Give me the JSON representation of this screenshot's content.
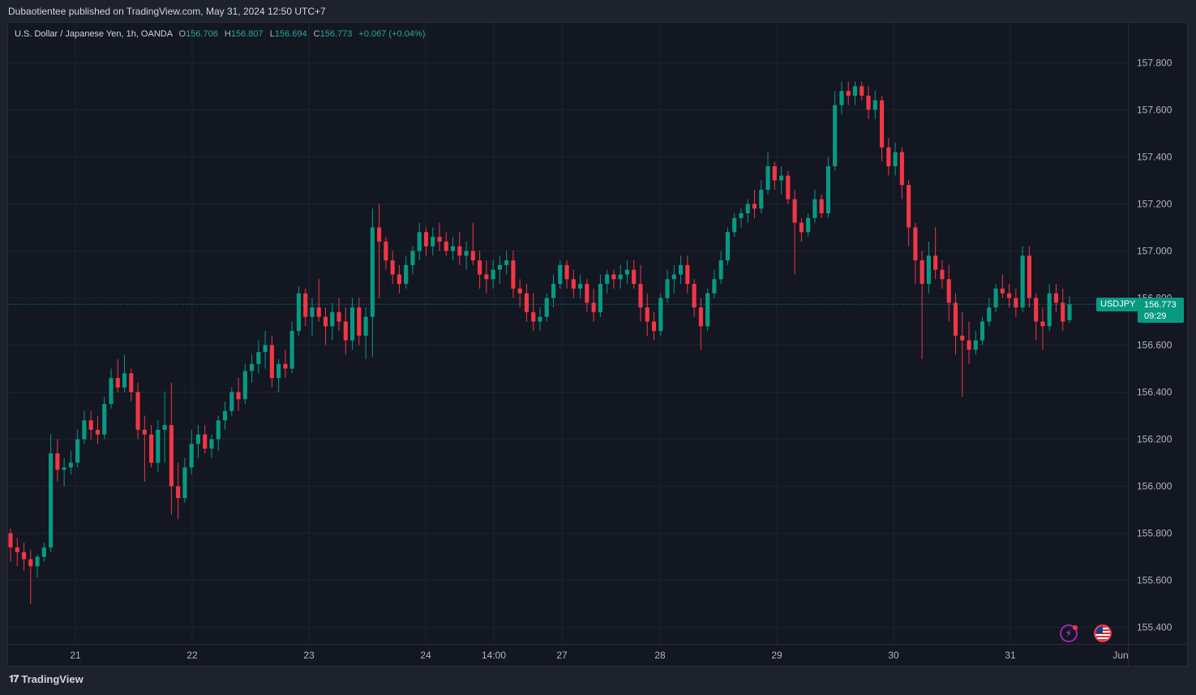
{
  "header": {
    "publisher": "Dubaotientee",
    "publish_line": "Dubaotientee published on TradingView.com, May 31, 2024 12:50 UTC+7"
  },
  "legend": {
    "symbol_description": "U.S. Dollar / Japanese Yen, 1h, OANDA",
    "open_label": "O",
    "open": "156.706",
    "high_label": "H",
    "high": "156.807",
    "low_label": "L",
    "low": "156.694",
    "close_label": "C",
    "close": "156.773",
    "change": "+0.067 (+0.04%)"
  },
  "price_tag": {
    "symbol": "USDJPY",
    "price": "156.773",
    "countdown": "09:29"
  },
  "footer": {
    "brand": "TradingView",
    "logo_icon": "tradingview-logo-icon"
  },
  "icons": {
    "flash": "flash-icon",
    "flag": "us-flag-icon"
  },
  "colors": {
    "up": "#089981",
    "down": "#f23645",
    "background": "#131722",
    "grid": "#1f2330",
    "axis_text": "#b2b5be",
    "last_price_line": "#089981"
  },
  "chart_data": {
    "type": "candlestick",
    "symbol": "USDJPY",
    "interval": "1h",
    "ylim": [
      155.33,
      157.97
    ],
    "y_ticks": [
      "155.400",
      "155.600",
      "155.800",
      "156.000",
      "156.200",
      "156.400",
      "156.600",
      "156.800",
      "157.000",
      "157.200",
      "157.400",
      "157.600",
      "157.800"
    ],
    "x_labels": [
      "21",
      "22",
      "23",
      "24",
      "14:00",
      "27",
      "28",
      "29",
      "30",
      "31",
      "Jun"
    ],
    "last_price": 156.773,
    "grid": true,
    "ohlc": [
      [
        155.8,
        155.82,
        155.68,
        155.74
      ],
      [
        155.74,
        155.78,
        155.66,
        155.72
      ],
      [
        155.72,
        155.76,
        155.64,
        155.69
      ],
      [
        155.69,
        155.73,
        155.5,
        155.66
      ],
      [
        155.66,
        155.71,
        155.61,
        155.7
      ],
      [
        155.7,
        155.76,
        155.68,
        155.74
      ],
      [
        155.74,
        156.22,
        155.72,
        156.14
      ],
      [
        156.14,
        156.2,
        156.02,
        156.07
      ],
      [
        156.07,
        156.12,
        156.0,
        156.08
      ],
      [
        156.08,
        156.15,
        156.05,
        156.1
      ],
      [
        156.1,
        156.24,
        156.08,
        156.2
      ],
      [
        156.2,
        156.32,
        156.18,
        156.28
      ],
      [
        156.28,
        156.32,
        156.2,
        156.24
      ],
      [
        156.24,
        156.3,
        156.18,
        156.22
      ],
      [
        156.22,
        156.38,
        156.2,
        156.35
      ],
      [
        156.35,
        156.5,
        156.33,
        156.46
      ],
      [
        156.46,
        156.54,
        156.4,
        156.42
      ],
      [
        156.42,
        156.56,
        156.4,
        156.48
      ],
      [
        156.48,
        156.5,
        156.36,
        156.4
      ],
      [
        156.4,
        156.44,
        156.2,
        156.24
      ],
      [
        156.24,
        156.3,
        156.02,
        156.22
      ],
      [
        156.22,
        156.26,
        156.08,
        156.1
      ],
      [
        156.1,
        156.28,
        156.06,
        156.24
      ],
      [
        156.24,
        156.4,
        156.1,
        156.26
      ],
      [
        156.26,
        156.44,
        155.88,
        156.0
      ],
      [
        156.0,
        156.1,
        155.86,
        155.95
      ],
      [
        155.95,
        156.12,
        155.93,
        156.08
      ],
      [
        156.08,
        156.24,
        156.05,
        156.18
      ],
      [
        156.18,
        156.26,
        156.12,
        156.22
      ],
      [
        156.22,
        156.26,
        156.14,
        156.16
      ],
      [
        156.16,
        156.22,
        156.12,
        156.2
      ],
      [
        156.2,
        156.3,
        156.15,
        156.28
      ],
      [
        156.28,
        156.36,
        156.24,
        156.32
      ],
      [
        156.32,
        156.42,
        156.3,
        156.4
      ],
      [
        156.4,
        156.46,
        156.32,
        156.37
      ],
      [
        156.37,
        156.52,
        156.35,
        156.49
      ],
      [
        156.49,
        156.56,
        156.44,
        156.52
      ],
      [
        156.52,
        156.62,
        156.48,
        156.57
      ],
      [
        156.57,
        156.66,
        156.5,
        156.6
      ],
      [
        156.6,
        156.64,
        156.42,
        156.46
      ],
      [
        156.46,
        156.54,
        156.4,
        156.52
      ],
      [
        156.52,
        156.58,
        156.46,
        156.5
      ],
      [
        156.5,
        156.7,
        156.48,
        156.66
      ],
      [
        156.66,
        156.85,
        156.64,
        156.82
      ],
      [
        156.82,
        156.84,
        156.68,
        156.72
      ],
      [
        156.72,
        156.8,
        156.64,
        156.76
      ],
      [
        156.76,
        156.88,
        156.7,
        156.72
      ],
      [
        156.72,
        156.76,
        156.6,
        156.68
      ],
      [
        156.68,
        156.78,
        156.62,
        156.74
      ],
      [
        156.74,
        156.8,
        156.66,
        156.7
      ],
      [
        156.7,
        156.76,
        156.56,
        156.62
      ],
      [
        156.62,
        156.8,
        156.58,
        156.76
      ],
      [
        156.76,
        156.8,
        156.6,
        156.64
      ],
      [
        156.64,
        156.76,
        156.54,
        156.72
      ],
      [
        156.72,
        157.18,
        156.55,
        157.1
      ],
      [
        157.1,
        157.2,
        156.8,
        157.04
      ],
      [
        157.04,
        157.06,
        156.92,
        156.96
      ],
      [
        156.96,
        157.0,
        156.86,
        156.9
      ],
      [
        156.9,
        156.94,
        156.82,
        156.86
      ],
      [
        156.86,
        156.98,
        156.84,
        156.94
      ],
      [
        156.94,
        157.02,
        156.9,
        157.0
      ],
      [
        157.0,
        157.12,
        156.96,
        157.08
      ],
      [
        157.08,
        157.1,
        156.98,
        157.02
      ],
      [
        157.02,
        157.1,
        156.98,
        157.06
      ],
      [
        157.06,
        157.12,
        157.0,
        157.04
      ],
      [
        157.04,
        157.08,
        156.98,
        157.0
      ],
      [
        157.0,
        157.06,
        156.96,
        157.02
      ],
      [
        157.02,
        157.08,
        156.94,
        156.98
      ],
      [
        156.98,
        157.04,
        156.92,
        157.0
      ],
      [
        157.0,
        157.12,
        156.94,
        156.96
      ],
      [
        156.96,
        157.0,
        156.84,
        156.9
      ],
      [
        156.9,
        156.96,
        156.82,
        156.88
      ],
      [
        156.88,
        156.96,
        156.84,
        156.92
      ],
      [
        156.92,
        156.98,
        156.86,
        156.94
      ],
      [
        156.94,
        157.0,
        156.9,
        156.96
      ],
      [
        156.96,
        157.0,
        156.8,
        156.84
      ],
      [
        156.84,
        156.88,
        156.76,
        156.82
      ],
      [
        156.82,
        156.86,
        156.7,
        156.74
      ],
      [
        156.74,
        156.82,
        156.66,
        156.7
      ],
      [
        156.7,
        156.76,
        156.66,
        156.72
      ],
      [
        156.72,
        156.82,
        156.7,
        156.8
      ],
      [
        156.8,
        156.9,
        156.76,
        156.86
      ],
      [
        156.86,
        156.96,
        156.84,
        156.94
      ],
      [
        156.94,
        156.96,
        156.84,
        156.88
      ],
      [
        156.88,
        156.92,
        156.8,
        156.84
      ],
      [
        156.84,
        156.9,
        156.8,
        156.86
      ],
      [
        156.86,
        156.88,
        156.74,
        156.78
      ],
      [
        156.78,
        156.84,
        156.7,
        156.74
      ],
      [
        156.74,
        156.9,
        156.72,
        156.86
      ],
      [
        156.86,
        156.92,
        156.82,
        156.9
      ],
      [
        156.9,
        156.92,
        156.84,
        156.88
      ],
      [
        156.88,
        156.94,
        156.84,
        156.9
      ],
      [
        156.9,
        156.96,
        156.86,
        156.92
      ],
      [
        156.92,
        156.96,
        156.84,
        156.86
      ],
      [
        156.86,
        156.94,
        156.7,
        156.76
      ],
      [
        156.76,
        156.82,
        156.64,
        156.7
      ],
      [
        156.7,
        156.74,
        156.62,
        156.66
      ],
      [
        156.66,
        156.82,
        156.64,
        156.8
      ],
      [
        156.8,
        156.92,
        156.78,
        156.88
      ],
      [
        156.88,
        156.94,
        156.82,
        156.9
      ],
      [
        156.9,
        156.98,
        156.86,
        156.94
      ],
      [
        156.94,
        156.98,
        156.82,
        156.86
      ],
      [
        156.86,
        156.88,
        156.72,
        156.76
      ],
      [
        156.76,
        156.8,
        156.58,
        156.68
      ],
      [
        156.68,
        156.84,
        156.66,
        156.82
      ],
      [
        156.82,
        156.92,
        156.8,
        156.88
      ],
      [
        156.88,
        157.0,
        156.86,
        156.96
      ],
      [
        156.96,
        157.1,
        156.94,
        157.08
      ],
      [
        157.08,
        157.16,
        157.06,
        157.14
      ],
      [
        157.14,
        157.18,
        157.1,
        157.16
      ],
      [
        157.16,
        157.22,
        157.12,
        157.2
      ],
      [
        157.2,
        157.26,
        157.14,
        157.18
      ],
      [
        157.18,
        157.3,
        157.16,
        157.26
      ],
      [
        157.26,
        157.42,
        157.24,
        157.36
      ],
      [
        157.36,
        157.38,
        157.26,
        157.3
      ],
      [
        157.3,
        157.36,
        157.24,
        157.32
      ],
      [
        157.32,
        157.34,
        157.2,
        157.22
      ],
      [
        157.22,
        157.26,
        156.9,
        157.12
      ],
      [
        157.12,
        157.14,
        157.04,
        157.08
      ],
      [
        157.08,
        157.16,
        157.06,
        157.14
      ],
      [
        157.14,
        157.26,
        157.12,
        157.22
      ],
      [
        157.22,
        157.24,
        157.14,
        157.16
      ],
      [
        157.16,
        157.4,
        157.14,
        157.36
      ],
      [
        157.36,
        157.68,
        157.34,
        157.62
      ],
      [
        157.62,
        157.72,
        157.58,
        157.68
      ],
      [
        157.68,
        157.72,
        157.62,
        157.66
      ],
      [
        157.66,
        157.72,
        157.62,
        157.7
      ],
      [
        157.7,
        157.72,
        157.64,
        157.66
      ],
      [
        157.66,
        157.7,
        157.56,
        157.6
      ],
      [
        157.6,
        157.68,
        157.56,
        157.64
      ],
      [
        157.64,
        157.66,
        157.38,
        157.44
      ],
      [
        157.44,
        157.48,
        157.32,
        157.36
      ],
      [
        157.36,
        157.46,
        157.32,
        157.42
      ],
      [
        157.42,
        157.44,
        157.22,
        157.28
      ],
      [
        157.28,
        157.3,
        157.02,
        157.1
      ],
      [
        157.1,
        157.12,
        156.86,
        156.96
      ],
      [
        156.96,
        157.0,
        156.54,
        156.86
      ],
      [
        156.86,
        157.04,
        156.82,
        156.98
      ],
      [
        156.98,
        157.1,
        156.88,
        156.92
      ],
      [
        156.92,
        156.96,
        156.84,
        156.88
      ],
      [
        156.88,
        156.94,
        156.7,
        156.78
      ],
      [
        156.78,
        156.82,
        156.56,
        156.64
      ],
      [
        156.64,
        156.74,
        156.38,
        156.62
      ],
      [
        156.62,
        156.7,
        156.52,
        156.58
      ],
      [
        156.58,
        156.66,
        156.56,
        156.62
      ],
      [
        156.62,
        156.72,
        156.6,
        156.7
      ],
      [
        156.7,
        156.8,
        156.68,
        156.76
      ],
      [
        156.76,
        156.86,
        156.74,
        156.84
      ],
      [
        156.84,
        156.9,
        156.8,
        156.82
      ],
      [
        156.82,
        156.86,
        156.76,
        156.8
      ],
      [
        156.8,
        156.84,
        156.72,
        156.76
      ],
      [
        156.76,
        157.02,
        156.74,
        156.98
      ],
      [
        156.98,
        157.02,
        156.76,
        156.8
      ],
      [
        156.8,
        156.82,
        156.62,
        156.7
      ],
      [
        156.7,
        156.76,
        156.58,
        156.68
      ],
      [
        156.68,
        156.86,
        156.66,
        156.82
      ],
      [
        156.82,
        156.86,
        156.74,
        156.78
      ],
      [
        156.78,
        156.84,
        156.66,
        156.7
      ],
      [
        156.706,
        156.807,
        156.694,
        156.773
      ]
    ]
  }
}
